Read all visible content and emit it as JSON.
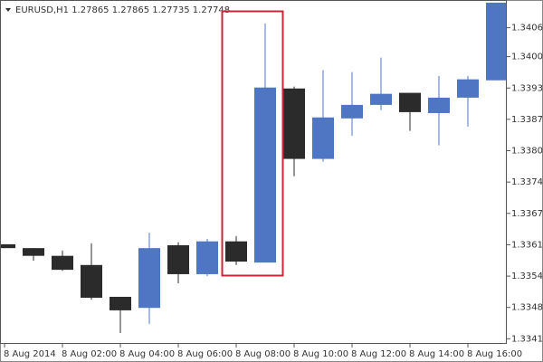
{
  "chart_data": {
    "type": "candlestick",
    "title": "EURUSD,H1  1.27865 1.27865 1.27735 1.27748",
    "categories": [
      "8 Aug 2014",
      null,
      "8 Aug 02:00",
      null,
      "8 Aug 04:00",
      null,
      "8 Aug 06:00",
      null,
      "8 Aug 08:00",
      null,
      "8 Aug 10:00",
      null,
      "8 Aug 12:00",
      null,
      "8 Aug 14:00",
      null,
      "8 Aug 16:00",
      null
    ],
    "open": [
      1.33611,
      1.33603,
      1.33587,
      1.33568,
      1.33502,
      1.33479,
      1.33609,
      1.33549,
      1.33617,
      1.33573,
      1.33934,
      1.33788,
      1.33872,
      1.339,
      1.33925,
      1.33883,
      1.33915,
      1.33951
    ],
    "high": [
      1.33611,
      1.33603,
      1.33598,
      1.33613,
      1.33502,
      1.33635,
      1.33615,
      1.33622,
      1.33628,
      1.34069,
      1.33938,
      1.33972,
      1.33968,
      1.33998,
      1.33925,
      1.3396,
      1.3396,
      1.34112
    ],
    "low": [
      1.33603,
      1.33577,
      1.33556,
      1.33496,
      1.33427,
      1.33446,
      1.3353,
      1.33545,
      1.33568,
      1.33573,
      1.33752,
      1.33782,
      1.33836,
      1.33889,
      1.33846,
      1.33816,
      1.33855,
      1.33951
    ],
    "close": [
      1.33603,
      1.33587,
      1.33558,
      1.335,
      1.33474,
      1.33603,
      1.33549,
      1.33617,
      1.33575,
      1.33936,
      1.33788,
      1.33874,
      1.339,
      1.33923,
      1.33885,
      1.33915,
      1.33953,
      1.34112
    ],
    "up_color": "#4f76c2",
    "down_color": "#2b2b2b",
    "ylim": [
      1.3341,
      1.3411
    ],
    "yticks": [
      {
        "value": 1.3406,
        "label": "1.34060"
      },
      {
        "value": 1.34,
        "label": "1.34000"
      },
      {
        "value": 1.33935,
        "label": "1.33935"
      },
      {
        "value": 1.3387,
        "label": "1.33870"
      },
      {
        "value": 1.33805,
        "label": "1.33805"
      },
      {
        "value": 1.3374,
        "label": "1.33740"
      },
      {
        "value": 1.33675,
        "label": "1.33675"
      },
      {
        "value": 1.3361,
        "label": "1.33610"
      },
      {
        "value": 1.33545,
        "label": "1.33545"
      },
      {
        "value": 1.3348,
        "label": "1.33480"
      },
      {
        "value": 1.33415,
        "label": "1.33415"
      }
    ]
  }
}
